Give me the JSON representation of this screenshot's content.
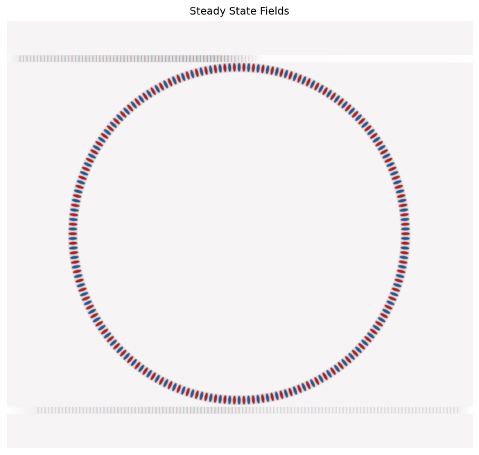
{
  "figure": {
    "title": "Steady State Fields"
  },
  "field_plot": {
    "colormap": "diverging red-white-blue",
    "background_color": "#f6f4f4",
    "waveguide_color": "#dcdcdc",
    "positive_color": "#a3161a",
    "negative_color": "#1a4f8c",
    "components": [
      "top-bus-waveguide",
      "ring-resonator",
      "bottom-bus-waveguide"
    ]
  }
}
